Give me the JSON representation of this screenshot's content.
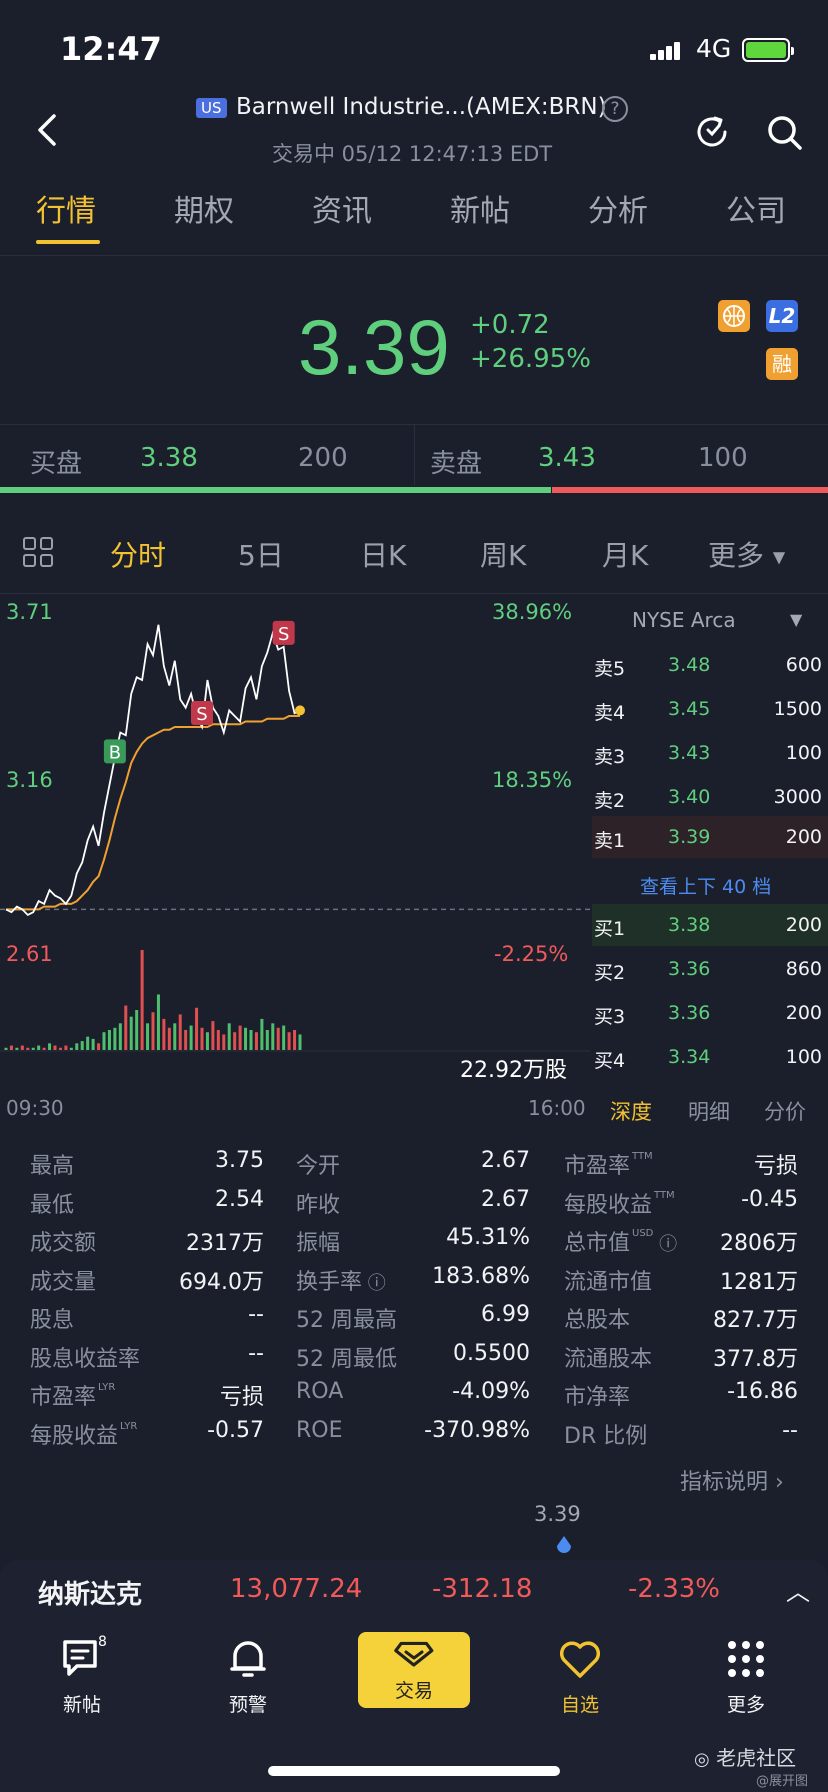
{
  "status_bar": {
    "time": "12:47",
    "network": "4G"
  },
  "header": {
    "badge": "US",
    "title": "Barnwell Industrie...(AMEX:BRN)",
    "help": "?",
    "subtitle": "交易中 05/12 12:47:13 EDT"
  },
  "tabs": [
    "行情",
    "期权",
    "资讯",
    "新帖",
    "分析",
    "公司"
  ],
  "quote": {
    "price": "3.39",
    "change": "+0.72",
    "change_pct": "+26.95%",
    "badges": [
      "L2",
      "融"
    ]
  },
  "bid_ask": {
    "bid_label": "买盘",
    "bid_price": "3.38",
    "bid_size": "200",
    "ask_label": "卖盘",
    "ask_price": "3.43",
    "ask_size": "100",
    "bid_ratio": 0.665
  },
  "chart_tabs": [
    "分时",
    "5日",
    "日K",
    "周K",
    "月K",
    "更多"
  ],
  "chart": {
    "price_high": "3.71",
    "price_mid": "3.16",
    "price_low": "2.61",
    "pct_high": "38.96%",
    "pct_mid": "18.35%",
    "pct_low": "-2.25%",
    "time_start": "09:30",
    "time_end": "16:00",
    "volume": "22.92万股",
    "markers": [
      "B",
      "S",
      "S"
    ],
    "colors": {
      "price_line": "#ffffff",
      "avg_line": "#f0a030",
      "volume_up": "#4fbf6e",
      "volume_down": "#e05050"
    }
  },
  "chart_data": {
    "type": "line",
    "title": "",
    "x_range": [
      "09:30",
      "16:00"
    ],
    "ylim": [
      2.61,
      3.71
    ],
    "series": [
      {
        "values": [
          2.67,
          2.66,
          2.68,
          2.67,
          2.65,
          2.66,
          2.7,
          2.69,
          2.74,
          2.72,
          2.71,
          2.69,
          2.72,
          2.8,
          2.84,
          2.92,
          2.97,
          2.9,
          3.02,
          3.12,
          3.22,
          3.31,
          3.3,
          3.45,
          3.51,
          3.5,
          3.63,
          3.59,
          3.7,
          3.55,
          3.48,
          3.57,
          3.43,
          3.4,
          3.45,
          3.37,
          3.33,
          3.5,
          3.4,
          3.37,
          3.31,
          3.39,
          3.37,
          3.35,
          3.47,
          3.51,
          3.43,
          3.55,
          3.6,
          3.67,
          3.61,
          3.62,
          3.46,
          3.38,
          3.39
        ]
      },
      {
        "values": [
          2.67,
          2.67,
          2.67,
          2.67,
          2.67,
          2.67,
          2.67,
          2.68,
          2.68,
          2.68,
          2.69,
          2.69,
          2.69,
          2.7,
          2.72,
          2.74,
          2.77,
          2.79,
          2.85,
          2.92,
          3.0,
          3.07,
          3.13,
          3.2,
          3.24,
          3.27,
          3.29,
          3.3,
          3.31,
          3.32,
          3.32,
          3.33,
          3.33,
          3.33,
          3.33,
          3.33,
          3.33,
          3.33,
          3.34,
          3.34,
          3.34,
          3.34,
          3.34,
          3.34,
          3.35,
          3.35,
          3.35,
          3.35,
          3.36,
          3.36,
          3.36,
          3.36,
          3.37,
          3.37,
          3.37
        ]
      }
    ],
    "volume": [
      1,
      2,
      1,
      2,
      1,
      1,
      2,
      1,
      3,
      2,
      1,
      2,
      1,
      3,
      4,
      6,
      5,
      3,
      8,
      9,
      10,
      12,
      20,
      15,
      18,
      45,
      12,
      17,
      25,
      14,
      10,
      12,
      16,
      9,
      11,
      19,
      10,
      8,
      13,
      9,
      7,
      12,
      8,
      11,
      10,
      9,
      8,
      14,
      9,
      12,
      10,
      11,
      8,
      9,
      7
    ]
  },
  "order_book": {
    "exchange": "NYSE Arca",
    "asks": [
      {
        "label": "卖5",
        "price": "3.48",
        "size": "600"
      },
      {
        "label": "卖4",
        "price": "3.45",
        "size": "1500"
      },
      {
        "label": "卖3",
        "price": "3.43",
        "size": "100"
      },
      {
        "label": "卖2",
        "price": "3.40",
        "size": "3000"
      },
      {
        "label": "卖1",
        "price": "3.39",
        "size": "200"
      }
    ],
    "more_link": "查看上下 40 档",
    "bids": [
      {
        "label": "买1",
        "price": "3.38",
        "size": "200"
      },
      {
        "label": "买2",
        "price": "3.36",
        "size": "860"
      },
      {
        "label": "买3",
        "price": "3.36",
        "size": "200"
      },
      {
        "label": "买4",
        "price": "3.34",
        "size": "100"
      }
    ],
    "tabs": [
      "深度",
      "明细",
      "分价"
    ]
  },
  "stats": [
    [
      {
        "label": "最高",
        "value": "3.75"
      },
      {
        "label": "最低",
        "value": "2.54"
      },
      {
        "label": "成交额",
        "value": "2317万"
      },
      {
        "label": "成交量",
        "value": "694.0万"
      },
      {
        "label": "股息",
        "value": "--"
      },
      {
        "label": "股息收益率",
        "value": "--"
      },
      {
        "label": "市盈率",
        "sup": "LYR",
        "value": "亏损"
      },
      {
        "label": "每股收益",
        "sup": "LYR",
        "value": "-0.57"
      }
    ],
    [
      {
        "label": "今开",
        "value": "2.67"
      },
      {
        "label": "昨收",
        "value": "2.67"
      },
      {
        "label": "振幅",
        "value": "45.31%"
      },
      {
        "label": "换手率",
        "value": "183.68%"
      },
      {
        "label": "52 周最高",
        "value": "6.99"
      },
      {
        "label": "52 周最低",
        "value": "0.5500"
      },
      {
        "label": "ROA",
        "value": "-4.09%"
      },
      {
        "label": "ROE",
        "value": "-370.98%"
      }
    ],
    [
      {
        "label": "市盈率",
        "sup": "TTM",
        "value": "亏损"
      },
      {
        "label": "每股收益",
        "sup": "TTM",
        "value": "-0.45"
      },
      {
        "label": "总市值",
        "sup": "USD",
        "value": "2806万"
      },
      {
        "label": "流通市值",
        "value": "1281万"
      },
      {
        "label": "总股本",
        "value": "827.7万"
      },
      {
        "label": "流通股本",
        "value": "377.8万"
      },
      {
        "label": "市净率",
        "value": "-16.86"
      },
      {
        "label": "DR 比例",
        "value": "--"
      }
    ]
  ],
  "indicator_link": "指标说明",
  "range_marker": "3.39",
  "ticker": {
    "name": "纳斯达克",
    "value": "13,077.24",
    "change": "-312.18",
    "change_pct": "-2.33%"
  },
  "nav": {
    "items": [
      {
        "label": "新帖",
        "badge": "8"
      },
      {
        "label": "预警"
      },
      {
        "label": "交易"
      },
      {
        "label": "自选"
      },
      {
        "label": "更多"
      }
    ]
  },
  "watermark": {
    "brand": "老虎社区",
    "credit": "@展开图"
  }
}
